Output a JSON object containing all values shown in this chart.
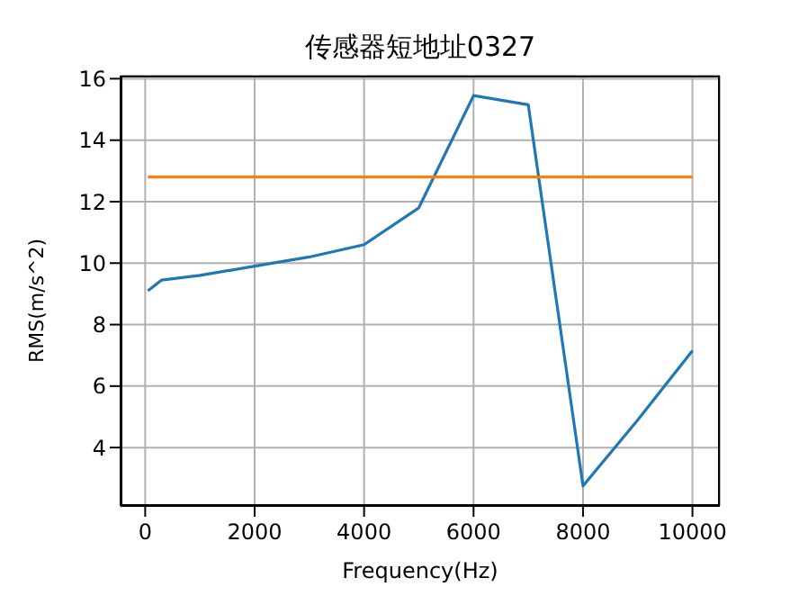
{
  "chart_data": {
    "type": "line",
    "title": "传感器短地址0327",
    "xlabel": "Frequency(Hz)",
    "ylabel": "RMS(m/s^2)",
    "series": [
      {
        "color": "#1f77b4",
        "x": [
          50,
          300,
          1000,
          2000,
          3000,
          4000,
          5000,
          6000,
          7000,
          8000,
          9000,
          10000
        ],
        "values": [
          9.1,
          9.45,
          9.6,
          9.9,
          10.2,
          10.6,
          11.8,
          15.45,
          15.15,
          2.75,
          4.9,
          7.15
        ]
      },
      {
        "color": "#ff7f0e",
        "x": [
          50,
          10000
        ],
        "values": [
          12.8,
          12.8
        ]
      }
    ],
    "xlim": [
      -450,
      10500
    ],
    "xticks": [
      0,
      2000,
      4000,
      6000,
      8000,
      10000
    ],
    "ylim": [
      2.1,
      16.1
    ],
    "yticks": [
      4,
      6,
      8,
      10,
      12,
      14,
      16
    ],
    "grid": true,
    "marker": "none",
    "line_style": "solid"
  }
}
